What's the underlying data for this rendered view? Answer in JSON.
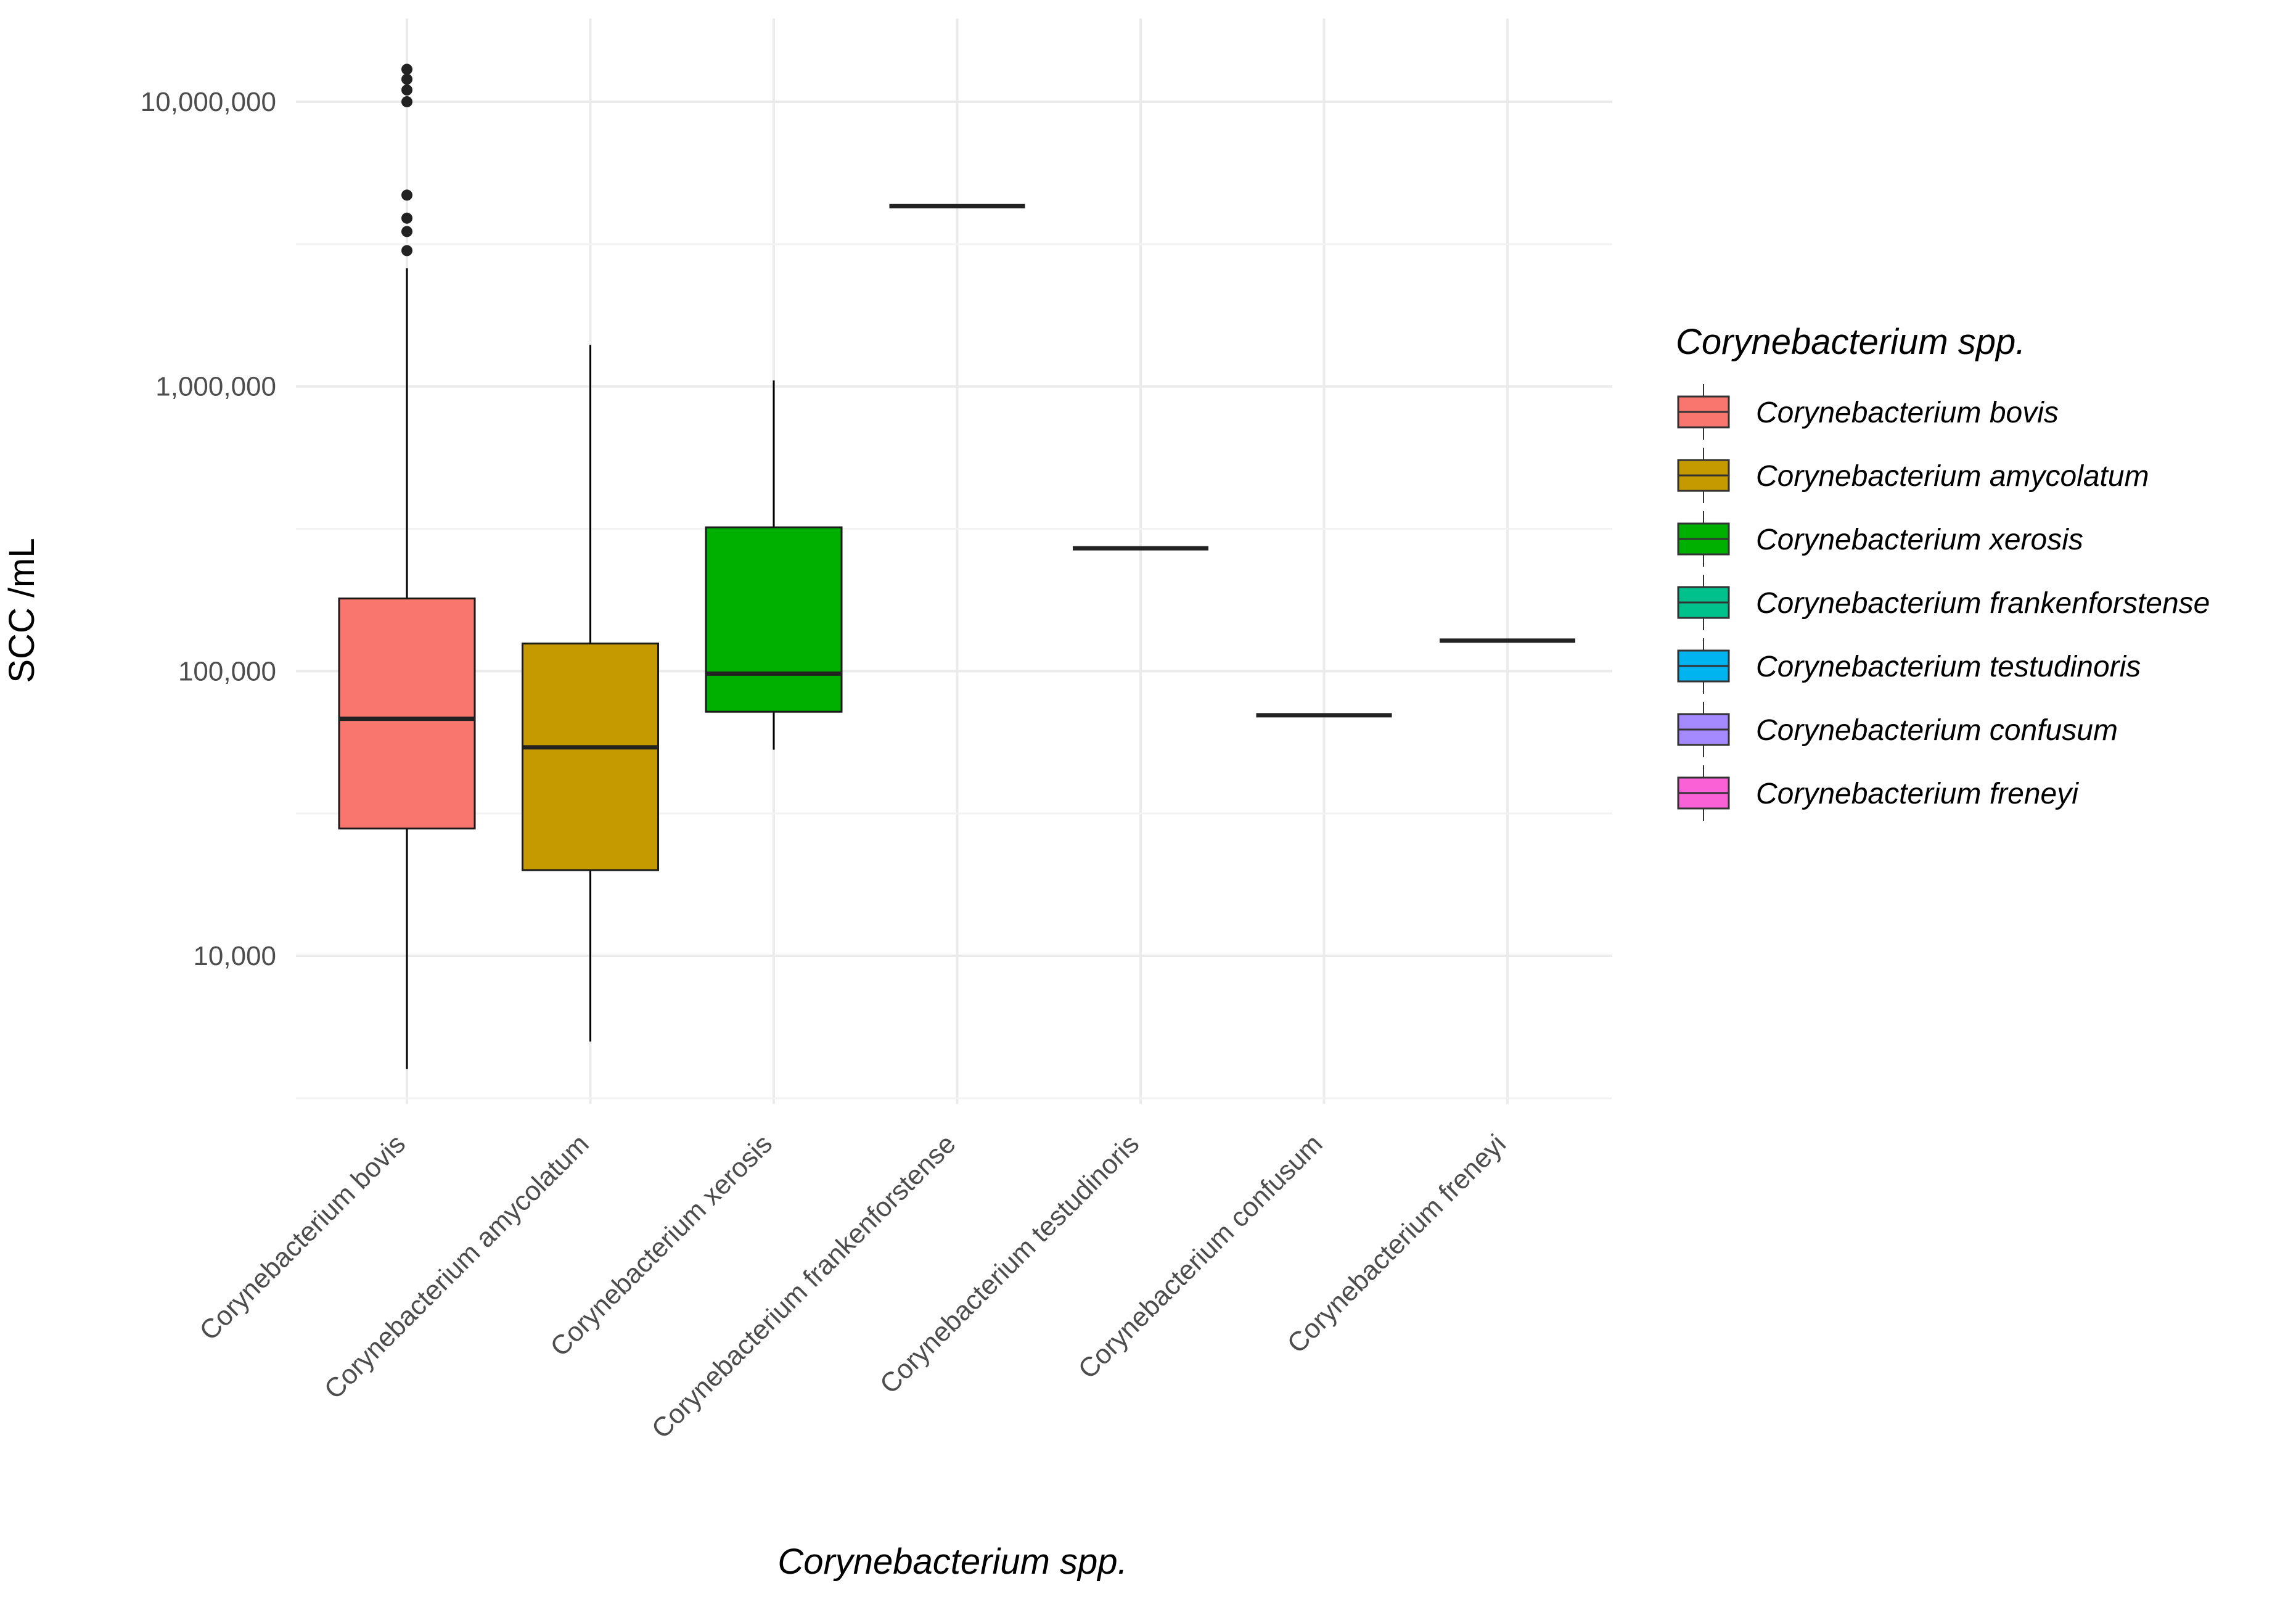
{
  "chart_data": {
    "type": "boxplot",
    "xlabel": "Corynebacterium spp.",
    "ylabel": "SCC /mL",
    "y_scale": "log10",
    "ylim": [
      2500,
      22000000
    ],
    "yticks": [
      10000,
      100000,
      1000000,
      10000000
    ],
    "ytick_labels": [
      "10,000",
      "100,000",
      "1,000,000",
      "10,000,000"
    ],
    "grid": true,
    "legend": {
      "title": "Corynebacterium spp.",
      "position": "right"
    },
    "categories": [
      "Corynebacterium bovis",
      "Corynebacterium amycolatum",
      "Corynebacterium xerosis",
      "Corynebacterium frankenforstense",
      "Corynebacterium testudinoris",
      "Corynebacterium confusum",
      "Corynebacterium freneyi"
    ],
    "series": [
      {
        "name": "Corynebacterium bovis",
        "color": "#F8766D",
        "min": 4000,
        "q1": 28000,
        "median": 68000,
        "q3": 180000,
        "max": 2600000,
        "outliers": [
          3000000,
          3500000,
          3900000,
          4700000,
          10000000,
          11000000,
          12000000,
          13000000
        ]
      },
      {
        "name": "Corynebacterium amycolatum",
        "color": "#C49A00",
        "min": 5000,
        "q1": 20000,
        "median": 54000,
        "q3": 125000,
        "max": 1400000,
        "outliers": []
      },
      {
        "name": "Corynebacterium xerosis",
        "color": "#00B000",
        "min": 53000,
        "q1": 72000,
        "median": 98000,
        "q3": 320000,
        "max": 1050000,
        "outliers": []
      },
      {
        "name": "Corynebacterium frankenforstense",
        "color": "#00C08B",
        "min": 4300000,
        "q1": 4300000,
        "median": 4300000,
        "q3": 4300000,
        "max": 4300000,
        "outliers": []
      },
      {
        "name": "Corynebacterium testudinoris",
        "color": "#00B4EF",
        "min": 270000,
        "q1": 270000,
        "median": 270000,
        "q3": 270000,
        "max": 270000,
        "outliers": []
      },
      {
        "name": "Corynebacterium confusum",
        "color": "#A58AFF",
        "min": 70000,
        "q1": 70000,
        "median": 70000,
        "q3": 70000,
        "max": 70000,
        "outliers": []
      },
      {
        "name": "Corynebacterium freneyi",
        "color": "#FB61D7",
        "min": 128000,
        "q1": 128000,
        "median": 128000,
        "q3": 128000,
        "max": 128000,
        "outliers": []
      }
    ]
  }
}
